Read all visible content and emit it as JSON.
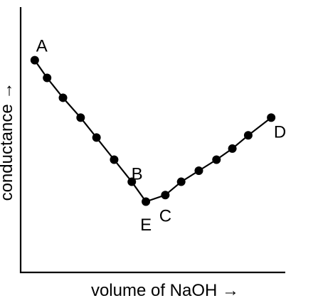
{
  "chart_data": {
    "type": "line",
    "title": "",
    "xlabel": "volume of NaOH →",
    "ylabel": "conductance →",
    "xlim": [
      0,
      15
    ],
    "ylim": [
      0,
      12
    ],
    "grid": false,
    "series": [
      {
        "x": [
          0.8,
          1.5,
          2.4,
          3.4,
          4.3,
          5.3,
          6.3,
          7.1,
          8.2,
          9.1,
          10.1,
          11.1,
          12.0,
          12.9,
          14.2
        ],
        "y": [
          9.6,
          8.8,
          7.9,
          7.0,
          6.1,
          5.1,
          4.1,
          3.2,
          3.5,
          4.1,
          4.6,
          5.1,
          5.6,
          6.2,
          7.0
        ]
      }
    ],
    "point_labels": [
      {
        "text": "A",
        "x": 1.2,
        "y": 10.2
      },
      {
        "text": "B",
        "x": 6.6,
        "y": 4.4
      },
      {
        "text": "E",
        "x": 7.1,
        "y": 2.1
      },
      {
        "text": "C",
        "x": 8.2,
        "y": 2.5
      },
      {
        "text": "D",
        "x": 14.7,
        "y": 6.3
      }
    ]
  }
}
